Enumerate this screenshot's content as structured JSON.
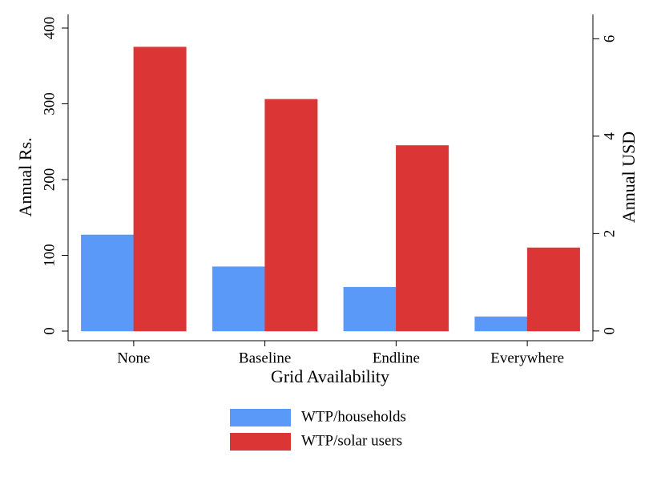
{
  "chart_data": {
    "type": "bar",
    "x_label": "Grid Availability",
    "y_label": "Annual Rs.",
    "y2_label": "Annual USD",
    "categories": [
      "None",
      "Baseline",
      "Endline",
      "Everywhere"
    ],
    "series": [
      {
        "name": "WTP/households",
        "color": "#5b99f8",
        "values": [
          127,
          85,
          58,
          19
        ]
      },
      {
        "name": "WTP/solar users",
        "color": "#dc3535",
        "values": [
          375,
          306,
          245,
          110
        ]
      }
    ],
    "ylim": [
      -12.7,
      418
    ],
    "yticks": [
      0,
      100,
      200,
      300,
      400
    ],
    "y2lim": [
      -0.2,
      6.5
    ],
    "y2ticks": [
      0,
      2,
      4,
      6
    ],
    "grid": false
  }
}
